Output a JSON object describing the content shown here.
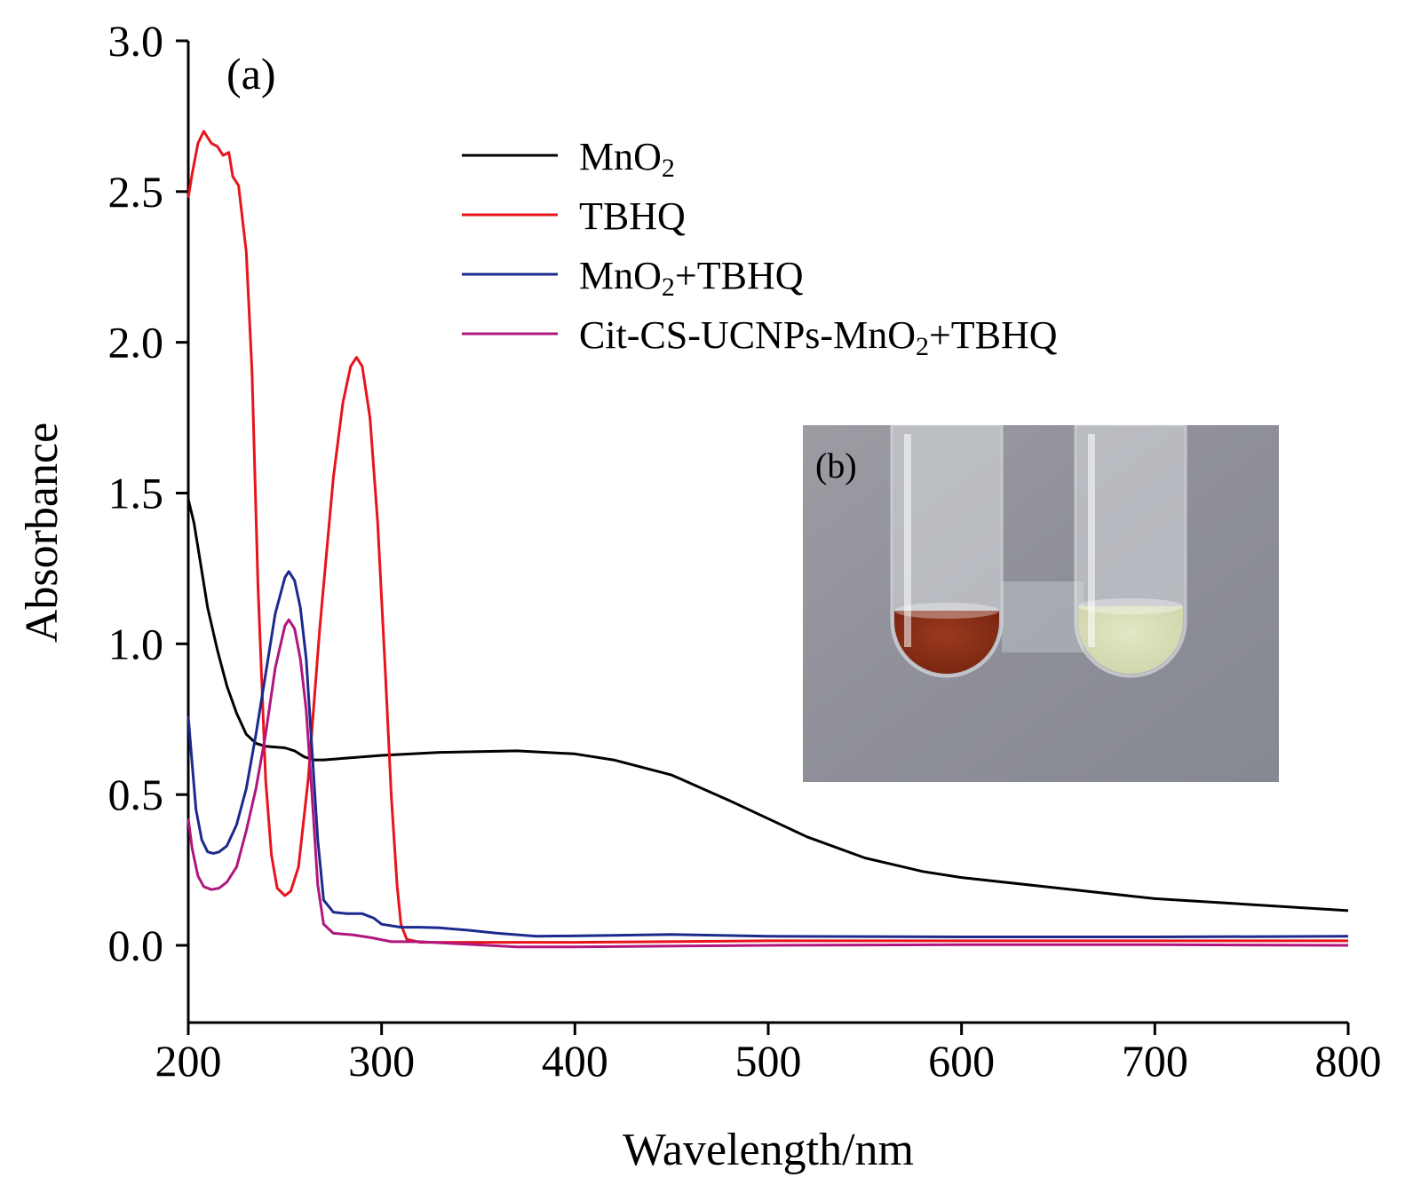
{
  "panel_labels": {
    "main": "(a)",
    "inset": "(b)"
  },
  "legend": [
    {
      "parts": [
        [
          "MnO",
          false
        ],
        [
          "2",
          true
        ]
      ],
      "color": "#000000"
    },
    {
      "parts": [
        [
          "TBHQ",
          false
        ]
      ],
      "color": "#e8141c"
    },
    {
      "parts": [
        [
          "MnO",
          false
        ],
        [
          "2",
          true
        ],
        [
          "+TBHQ",
          false
        ]
      ],
      "color": "#1b2a8c"
    },
    {
      "parts": [
        [
          "Cit-CS-UCNPs-MnO",
          false
        ],
        [
          "2",
          true
        ],
        [
          "+TBHQ",
          false
        ]
      ],
      "color": "#b0167e"
    }
  ],
  "inset": {
    "description_icon": "photo-two-test-tubes",
    "colors": {
      "background": "#8e8f98",
      "tube_left_liquid": "#7a2612",
      "tube_right_liquid": "#d2d6ad",
      "glass": "#d9dde0"
    }
  },
  "chart_data": {
    "type": "line",
    "xlabel": "Wavelength/nm",
    "ylabel": "Absorbance",
    "xlim": [
      200,
      800
    ],
    "ylim": [
      -0.25,
      3.0
    ],
    "xticks": [
      200,
      300,
      400,
      500,
      600,
      700,
      800
    ],
    "yticks": [
      0.0,
      0.5,
      1.0,
      1.5,
      2.0,
      2.5,
      3.0
    ],
    "ytick_labels": [
      "0.0",
      "0.5",
      "1.0",
      "1.5",
      "2.0",
      "2.5",
      "3.0"
    ],
    "grid": false,
    "legend_position": "top-right",
    "series": [
      {
        "name": "MnO2",
        "color": "#000000",
        "points": [
          [
            200,
            1.48
          ],
          [
            203,
            1.4
          ],
          [
            206,
            1.28
          ],
          [
            210,
            1.12
          ],
          [
            215,
            0.98
          ],
          [
            220,
            0.86
          ],
          [
            225,
            0.77
          ],
          [
            230,
            0.7
          ],
          [
            235,
            0.67
          ],
          [
            240,
            0.66
          ],
          [
            250,
            0.655
          ],
          [
            255,
            0.645
          ],
          [
            260,
            0.625
          ],
          [
            265,
            0.615
          ],
          [
            270,
            0.615
          ],
          [
            280,
            0.62
          ],
          [
            300,
            0.63
          ],
          [
            330,
            0.64
          ],
          [
            370,
            0.645
          ],
          [
            400,
            0.635
          ],
          [
            420,
            0.615
          ],
          [
            450,
            0.565
          ],
          [
            480,
            0.48
          ],
          [
            500,
            0.42
          ],
          [
            520,
            0.36
          ],
          [
            550,
            0.29
          ],
          [
            580,
            0.245
          ],
          [
            600,
            0.225
          ],
          [
            650,
            0.19
          ],
          [
            700,
            0.155
          ],
          [
            750,
            0.135
          ],
          [
            800,
            0.115
          ]
        ]
      },
      {
        "name": "TBHQ",
        "color": "#e8141c",
        "points": [
          [
            200,
            2.48
          ],
          [
            202,
            2.56
          ],
          [
            205,
            2.66
          ],
          [
            208,
            2.7
          ],
          [
            212,
            2.66
          ],
          [
            215,
            2.65
          ],
          [
            218,
            2.62
          ],
          [
            221,
            2.63
          ],
          [
            223,
            2.55
          ],
          [
            226,
            2.52
          ],
          [
            230,
            2.3
          ],
          [
            233,
            1.9
          ],
          [
            236,
            1.2
          ],
          [
            240,
            0.55
          ],
          [
            243,
            0.3
          ],
          [
            246,
            0.19
          ],
          [
            250,
            0.165
          ],
          [
            253,
            0.18
          ],
          [
            257,
            0.26
          ],
          [
            262,
            0.55
          ],
          [
            268,
            1.05
          ],
          [
            275,
            1.55
          ],
          [
            280,
            1.8
          ],
          [
            284,
            1.92
          ],
          [
            287,
            1.95
          ],
          [
            290,
            1.92
          ],
          [
            294,
            1.75
          ],
          [
            298,
            1.4
          ],
          [
            302,
            0.9
          ],
          [
            305,
            0.5
          ],
          [
            308,
            0.2
          ],
          [
            310,
            0.07
          ],
          [
            313,
            0.02
          ],
          [
            320,
            0.01
          ],
          [
            350,
            0.01
          ],
          [
            400,
            0.01
          ],
          [
            500,
            0.015
          ],
          [
            600,
            0.015
          ],
          [
            700,
            0.015
          ],
          [
            800,
            0.015
          ]
        ]
      },
      {
        "name": "MnO2+TBHQ",
        "color": "#1b2a8c",
        "points": [
          [
            200,
            0.76
          ],
          [
            202,
            0.6
          ],
          [
            204,
            0.45
          ],
          [
            207,
            0.35
          ],
          [
            210,
            0.31
          ],
          [
            213,
            0.305
          ],
          [
            216,
            0.31
          ],
          [
            220,
            0.33
          ],
          [
            225,
            0.4
          ],
          [
            230,
            0.52
          ],
          [
            235,
            0.7
          ],
          [
            240,
            0.9
          ],
          [
            245,
            1.1
          ],
          [
            250,
            1.22
          ],
          [
            252,
            1.24
          ],
          [
            255,
            1.21
          ],
          [
            258,
            1.12
          ],
          [
            261,
            0.95
          ],
          [
            264,
            0.65
          ],
          [
            267,
            0.35
          ],
          [
            270,
            0.15
          ],
          [
            275,
            0.11
          ],
          [
            282,
            0.105
          ],
          [
            290,
            0.105
          ],
          [
            296,
            0.09
          ],
          [
            300,
            0.07
          ],
          [
            310,
            0.06
          ],
          [
            320,
            0.06
          ],
          [
            330,
            0.058
          ],
          [
            345,
            0.05
          ],
          [
            360,
            0.04
          ],
          [
            380,
            0.03
          ],
          [
            420,
            0.033
          ],
          [
            450,
            0.036
          ],
          [
            500,
            0.03
          ],
          [
            600,
            0.028
          ],
          [
            700,
            0.028
          ],
          [
            800,
            0.03
          ]
        ]
      },
      {
        "name": "Cit-CS-UCNPs-MnO2+TBHQ",
        "color": "#b0167e",
        "points": [
          [
            200,
            0.42
          ],
          [
            202,
            0.32
          ],
          [
            205,
            0.23
          ],
          [
            208,
            0.195
          ],
          [
            212,
            0.185
          ],
          [
            216,
            0.19
          ],
          [
            220,
            0.21
          ],
          [
            225,
            0.26
          ],
          [
            230,
            0.38
          ],
          [
            235,
            0.52
          ],
          [
            240,
            0.7
          ],
          [
            245,
            0.92
          ],
          [
            250,
            1.06
          ],
          [
            252,
            1.08
          ],
          [
            255,
            1.05
          ],
          [
            258,
            0.95
          ],
          [
            261,
            0.78
          ],
          [
            264,
            0.5
          ],
          [
            267,
            0.2
          ],
          [
            270,
            0.07
          ],
          [
            275,
            0.04
          ],
          [
            285,
            0.035
          ],
          [
            295,
            0.025
          ],
          [
            305,
            0.012
          ],
          [
            320,
            0.012
          ],
          [
            340,
            0.005
          ],
          [
            370,
            -0.005
          ],
          [
            400,
            -0.005
          ],
          [
            500,
            0.0
          ],
          [
            600,
            0.002
          ],
          [
            700,
            0.002
          ],
          [
            800,
            0.0
          ]
        ]
      }
    ]
  }
}
